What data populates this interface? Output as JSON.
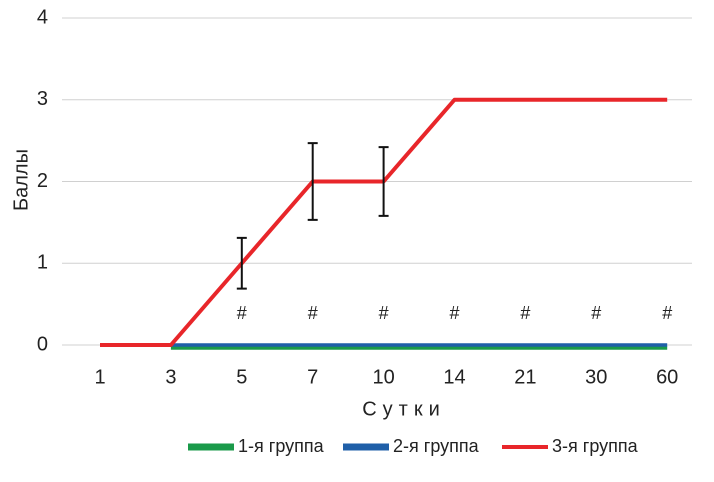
{
  "chart_data": {
    "type": "line",
    "xlabel": "Сутки",
    "ylabel": "Баллы",
    "categories": [
      "1",
      "3",
      "5",
      "7",
      "10",
      "14",
      "21",
      "30",
      "60"
    ],
    "ylim": [
      0,
      4
    ],
    "yticks": [
      0,
      1,
      2,
      3,
      4
    ],
    "grid": true,
    "annotations": [
      null,
      null,
      "#",
      "#",
      "#",
      "#",
      "#",
      "#",
      "#"
    ],
    "series": [
      {
        "name": "1-я группа",
        "color": "#1a9a4a",
        "values": [
          null,
          0,
          0,
          0,
          0,
          0,
          0,
          0,
          0
        ]
      },
      {
        "name": "2-я группа",
        "color": "#1f5fa8",
        "values": [
          null,
          0,
          0,
          0,
          0,
          0,
          0,
          0,
          0
        ]
      },
      {
        "name": "3-я группа",
        "color": "#e8262a",
        "values": [
          0,
          0,
          1,
          2,
          2,
          3,
          3,
          3,
          3
        ],
        "errors": [
          null,
          null,
          0.31,
          0.47,
          0.42,
          null,
          null,
          null,
          null
        ]
      }
    ]
  }
}
